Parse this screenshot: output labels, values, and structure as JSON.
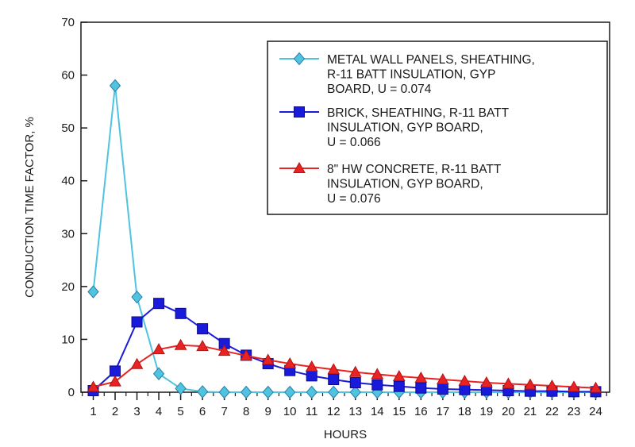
{
  "chart_data": {
    "type": "line",
    "xlabel": "HOURS",
    "ylabel": "CONDUCTION TIME FACTOR, %",
    "xlim": [
      1,
      24
    ],
    "ylim": [
      0,
      70
    ],
    "x_ticks": [
      "1",
      "2",
      "3",
      "4",
      "5",
      "6",
      "7",
      "8",
      "9",
      "10",
      "11",
      "12",
      "13",
      "14",
      "15",
      "16",
      "17",
      "18",
      "19",
      "20",
      "21",
      "22",
      "23",
      "24"
    ],
    "y_ticks": [
      "0",
      "10",
      "20",
      "30",
      "40",
      "50",
      "60",
      "70"
    ],
    "grid": false,
    "legend_position": "top-right",
    "x": [
      1,
      2,
      3,
      4,
      5,
      6,
      7,
      8,
      9,
      10,
      11,
      12,
      13,
      14,
      15,
      16,
      17,
      18,
      19,
      20,
      21,
      22,
      23,
      24
    ],
    "series": [
      {
        "name": "METAL WALL PANELS, SHEATHING, R-11 BATT INSULATION, GYP BOARD, U = 0.074",
        "legend_lines": [
          "METAL WALL PANELS, SHEATHING,",
          "R-11 BATT INSULATION, GYP",
          "BOARD, U = 0.074"
        ],
        "color": "#4fc3df",
        "marker": "diamond",
        "values": [
          19,
          58,
          18,
          3.5,
          0.7,
          0.1,
          0,
          0,
          0,
          0,
          0,
          0,
          0,
          0,
          0,
          0,
          0,
          0,
          0,
          0,
          0,
          0,
          0,
          0
        ]
      },
      {
        "name": "BRICK, SHEATHING, R-11 BATT INSULATION, GYP BOARD, U = 0.066",
        "legend_lines": [
          "BRICK, SHEATHING, R-11 BATT",
          "INSULATION, GYP BOARD,",
          "U = 0.066"
        ],
        "color": "#1a1adb",
        "marker": "square",
        "values": [
          0.3,
          4,
          13.3,
          16.8,
          14.9,
          12,
          9.2,
          7,
          5.4,
          4.1,
          3.1,
          2.4,
          1.8,
          1.4,
          1.1,
          0.8,
          0.6,
          0.5,
          0.4,
          0.3,
          0.2,
          0.2,
          0.1,
          0.1
        ]
      },
      {
        "name": "8\" HW CONCRETE, R-11 BATT INSULATION, GYP BOARD, U = 0.076",
        "legend_lines": [
          "8\" HW CONCRETE, R-11 BATT",
          "INSULATION, GYP BOARD,",
          "U = 0.076"
        ],
        "color": "#e82323",
        "marker": "triangle",
        "values": [
          1,
          2,
          5.3,
          8.1,
          8.9,
          8.7,
          7.8,
          6.9,
          6.1,
          5.4,
          4.8,
          4.3,
          3.8,
          3.4,
          3,
          2.7,
          2.4,
          2.1,
          1.8,
          1.6,
          1.4,
          1.2,
          1,
          0.8
        ]
      }
    ]
  }
}
